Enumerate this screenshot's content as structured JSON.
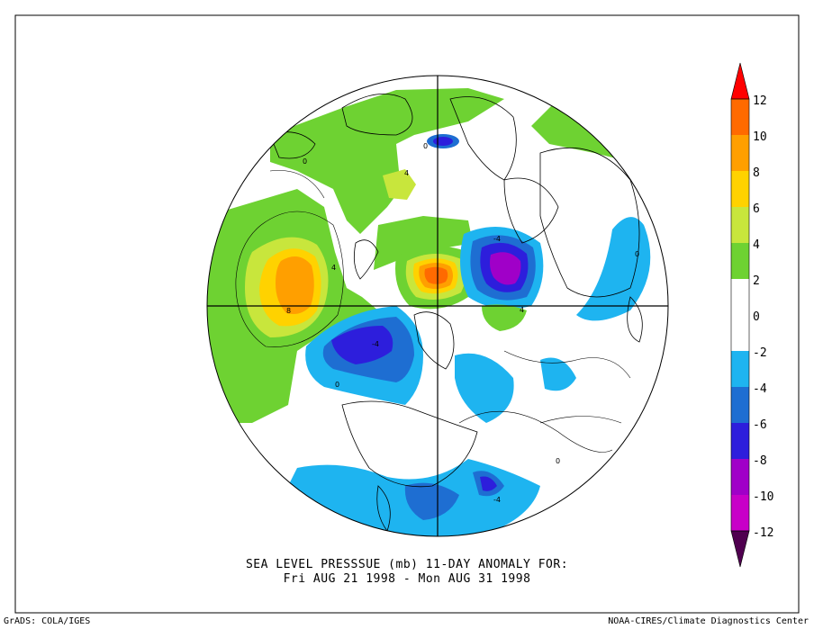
{
  "map": {
    "title_line1": "SEA LEVEL PRESSSUE (mb)    11-DAY ANOMALY FOR:",
    "title_line2": "Fri AUG 21 1998 - Mon AUG 31 1998",
    "credit_left": "GrADS: COLA/IGES",
    "credit_right": "NOAA-CIRES/Climate Diagnostics Center",
    "projection": "north-polar-stereographic",
    "contour_labels": {
      "zero": "0",
      "pos4": "4",
      "neg4": "-4",
      "pos8": "8"
    }
  },
  "colorbar": {
    "labels": [
      "12",
      "10",
      "8",
      "6",
      "4",
      "2",
      "0",
      "-2",
      "-4",
      "-6",
      "-8",
      "-10",
      "-12"
    ],
    "colors": {
      "above12": "#ff0000",
      "10to12": "#ff6a00",
      "8to10": "#ff9f00",
      "6to8": "#ffd200",
      "4to6": "#c8e63c",
      "2to4": "#6ed232",
      "neg2to2": "#ffffff",
      "neg4toneg2": "#1eb4f0",
      "neg6toneg4": "#1e6ed2",
      "neg8toneg6": "#2d1edc",
      "neg10toneg8": "#a000c8",
      "neg12toneg10": "#c800c8",
      "below_neg12": "#820078",
      "bottom_tip": "#500050"
    }
  }
}
